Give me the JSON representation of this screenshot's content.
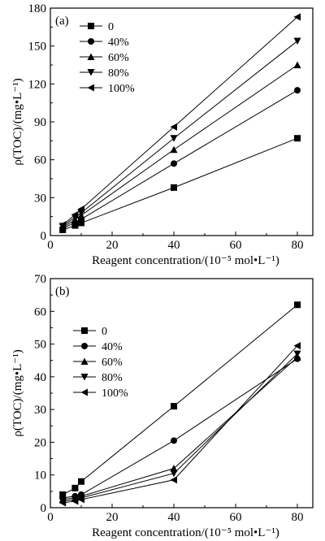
{
  "chart_data": [
    {
      "type": "line",
      "panel_label": "(a)",
      "ylabel": "ρ(TOC)/(mg•L⁻¹)",
      "xlabel": "Reagent concentration/(10⁻⁵ mol•L⁻¹)",
      "xlim": [
        0,
        85
      ],
      "ylim": [
        0,
        180
      ],
      "xticks": [
        0,
        20,
        40,
        60,
        80
      ],
      "yticks": [
        0,
        30,
        60,
        90,
        120,
        150,
        180
      ],
      "x": [
        4,
        8,
        10,
        40,
        80
      ],
      "legend_position": "top-left",
      "series": [
        {
          "name": "0",
          "marker": "square",
          "values": [
            4.5,
            8,
            10,
            38,
            77
          ]
        },
        {
          "name": "40%",
          "marker": "circle",
          "values": [
            5.5,
            10.5,
            13,
            57,
            115
          ]
        },
        {
          "name": "60%",
          "marker": "triangle-up",
          "values": [
            6.5,
            12.5,
            16,
            68,
            135
          ]
        },
        {
          "name": "80%",
          "marker": "triangle-down",
          "values": [
            7.5,
            14.5,
            18,
            77,
            154
          ]
        },
        {
          "name": "100%",
          "marker": "triangle-left",
          "values": [
            8.5,
            16.5,
            21,
            86,
            173
          ]
        }
      ]
    },
    {
      "type": "line",
      "panel_label": "(b)",
      "ylabel": "ρ(TOC)/(mg•L⁻¹)",
      "xlabel": "Reagent concentration/(10⁻⁵ mol•L⁻¹)",
      "xlim": [
        0,
        85
      ],
      "ylim": [
        0,
        70
      ],
      "xticks": [
        0,
        20,
        40,
        60,
        80
      ],
      "yticks": [
        0,
        10,
        20,
        30,
        40,
        50,
        60,
        70
      ],
      "x": [
        4,
        8,
        10,
        40,
        80
      ],
      "legend_position": "top-left",
      "series": [
        {
          "name": "0",
          "marker": "square",
          "values": [
            4,
            6,
            8,
            31,
            62
          ]
        },
        {
          "name": "40%",
          "marker": "circle",
          "values": [
            3,
            3.5,
            4,
            20.5,
            45.5
          ]
        },
        {
          "name": "60%",
          "marker": "triangle-up",
          "values": [
            2.5,
            3,
            3.5,
            12,
            46
          ]
        },
        {
          "name": "80%",
          "marker": "triangle-down",
          "values": [
            2,
            2.5,
            3,
            10.5,
            47
          ]
        },
        {
          "name": "100%",
          "marker": "triangle-left",
          "values": [
            1.5,
            2,
            2.5,
            8.5,
            49.5
          ]
        }
      ]
    }
  ]
}
